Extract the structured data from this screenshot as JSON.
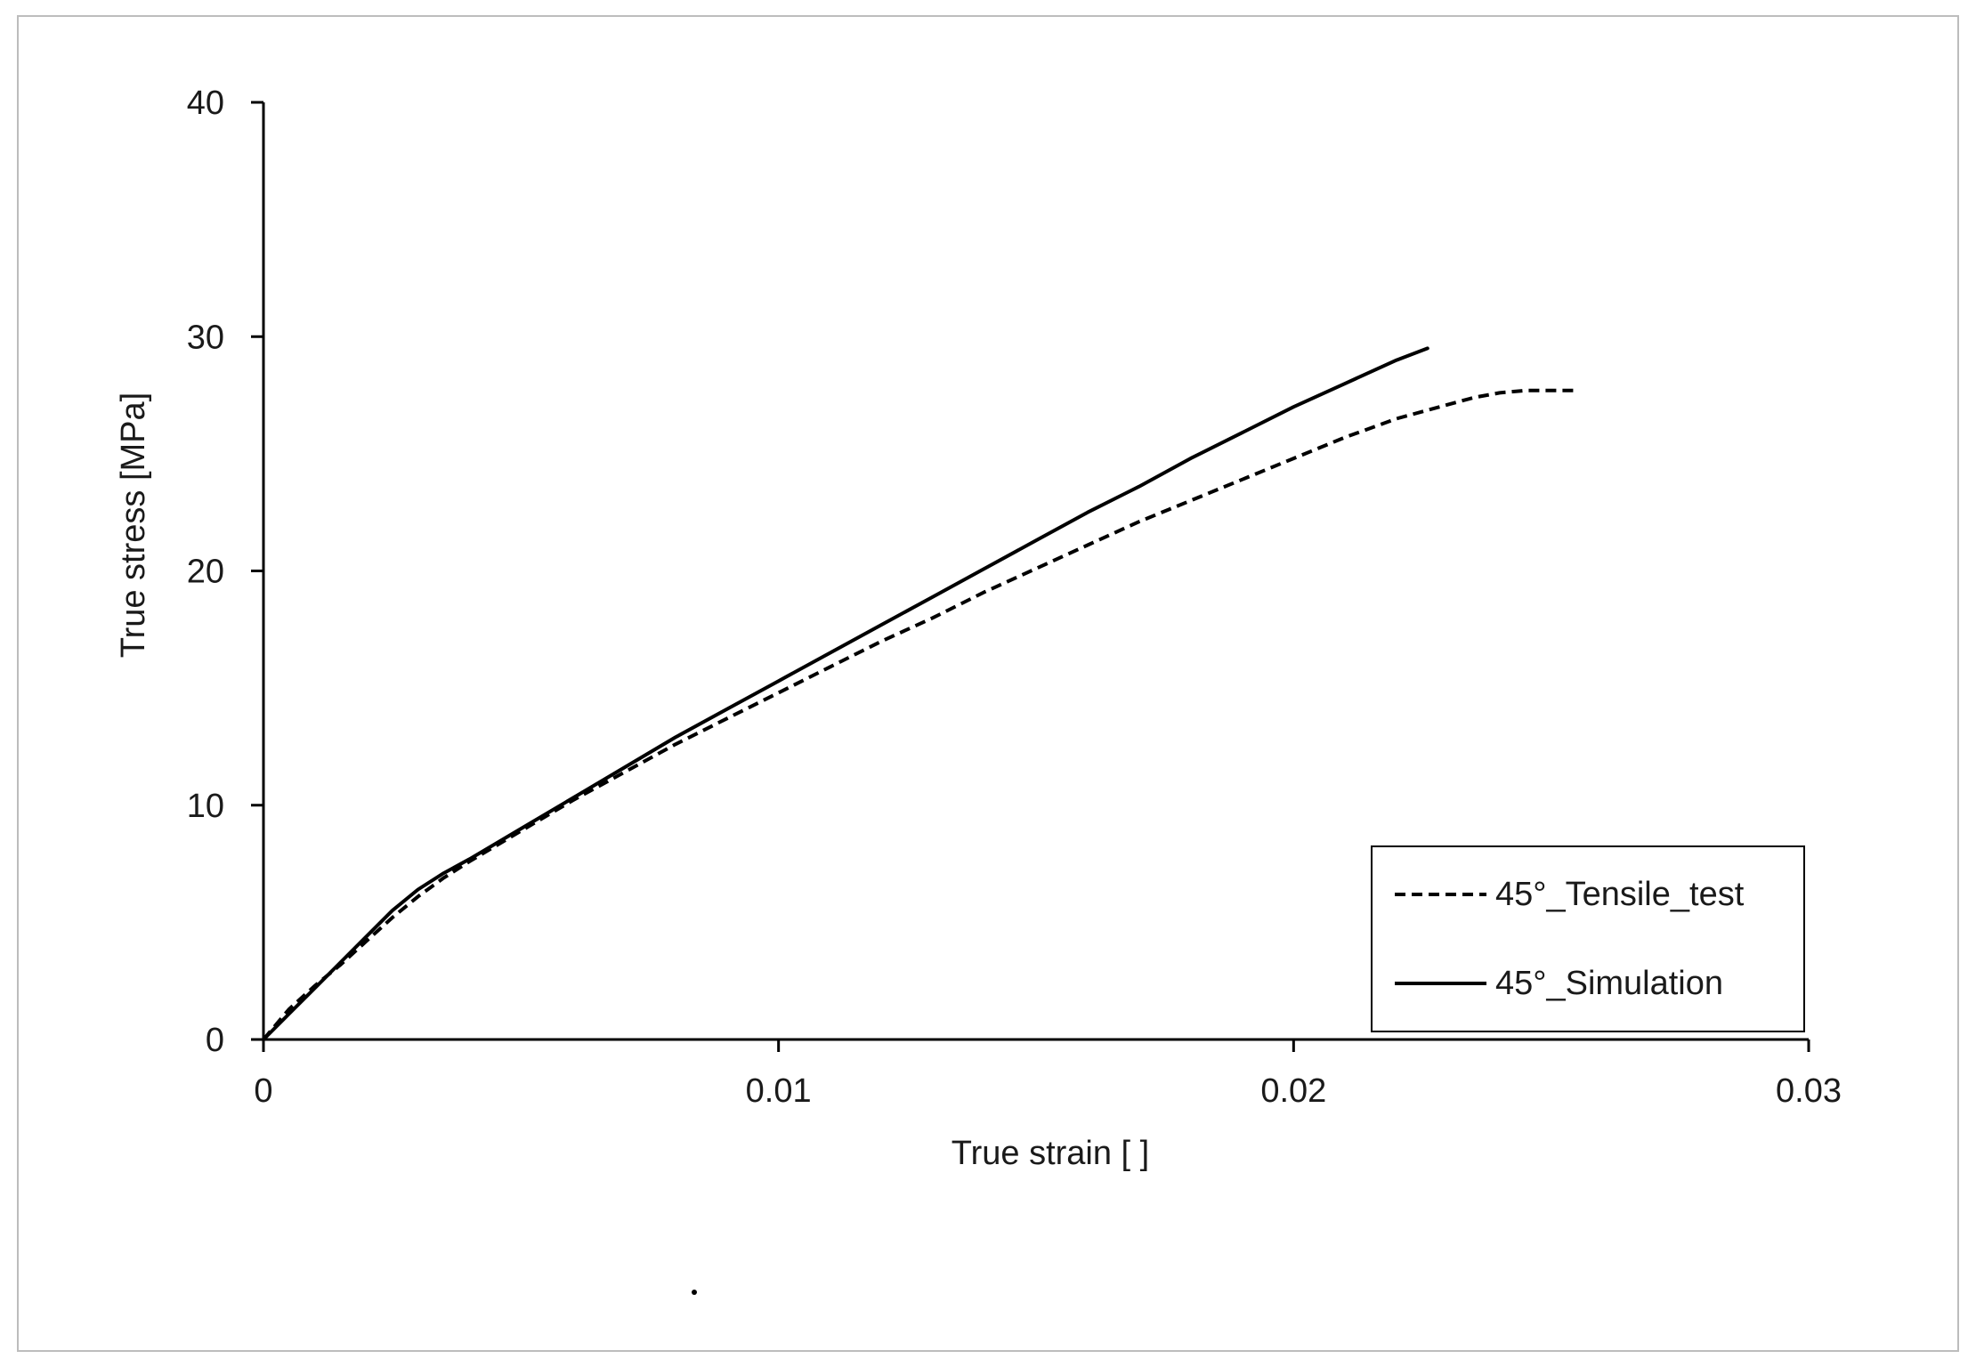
{
  "chart_data": {
    "type": "line",
    "title": "",
    "xlabel": "True strain [ ]",
    "ylabel": "True stress [MPa]",
    "xlim": [
      0,
      0.03
    ],
    "ylim": [
      0,
      40
    ],
    "x_ticks": [
      0,
      0.01,
      0.02,
      0.03
    ],
    "x_tick_labels": [
      "0",
      "0.01",
      "0.02",
      "0.03"
    ],
    "y_ticks": [
      0,
      10,
      20,
      30,
      40
    ],
    "y_tick_labels": [
      "0",
      "10",
      "20",
      "30",
      "40"
    ],
    "grid": false,
    "legend_position": "bottom-right",
    "series": [
      {
        "name": "45°_Tensile_test",
        "style": "dashed",
        "color": "#000000",
        "x": [
          0,
          0.0005,
          0.001,
          0.0015,
          0.002,
          0.0025,
          0.003,
          0.0035,
          0.004,
          0.005,
          0.006,
          0.007,
          0.008,
          0.009,
          0.01,
          0.011,
          0.012,
          0.013,
          0.014,
          0.015,
          0.016,
          0.017,
          0.018,
          0.019,
          0.02,
          0.021,
          0.022,
          0.023,
          0.0235,
          0.024,
          0.0245,
          0.025,
          0.0255
        ],
        "y": [
          0,
          1.3,
          2.3,
          3.2,
          4.2,
          5.2,
          6.1,
          6.9,
          7.6,
          8.9,
          10.2,
          11.4,
          12.6,
          13.7,
          14.8,
          15.9,
          17.0,
          18.0,
          19.1,
          20.1,
          21.1,
          22.1,
          23.0,
          23.9,
          24.8,
          25.7,
          26.5,
          27.1,
          27.4,
          27.6,
          27.7,
          27.7,
          27.7
        ]
      },
      {
        "name": "45°_Simulation",
        "style": "solid",
        "color": "#000000",
        "x": [
          0,
          0.0005,
          0.001,
          0.0015,
          0.002,
          0.0025,
          0.003,
          0.0035,
          0.004,
          0.005,
          0.006,
          0.007,
          0.008,
          0.009,
          0.01,
          0.011,
          0.012,
          0.013,
          0.014,
          0.015,
          0.016,
          0.017,
          0.018,
          0.019,
          0.02,
          0.021,
          0.022,
          0.0226
        ],
        "y": [
          0,
          1.1,
          2.2,
          3.3,
          4.4,
          5.5,
          6.4,
          7.1,
          7.7,
          9.0,
          10.3,
          11.6,
          12.9,
          14.1,
          15.3,
          16.5,
          17.7,
          18.9,
          20.1,
          21.3,
          22.5,
          23.6,
          24.8,
          25.9,
          27.0,
          28.0,
          29.0,
          29.5
        ]
      }
    ]
  }
}
